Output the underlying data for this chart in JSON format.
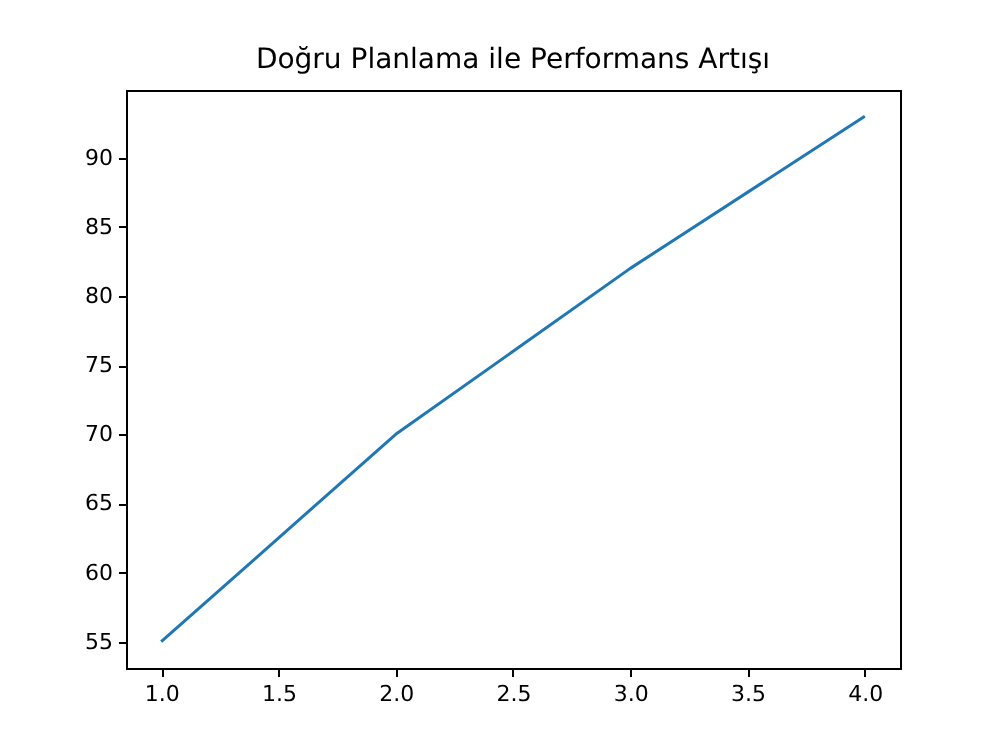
{
  "chart_data": {
    "type": "line",
    "title": "Doğru Planlama ile Performans Artışı",
    "x": [
      1,
      2,
      3,
      4
    ],
    "series": [
      {
        "color": "#1f77b4",
        "values": [
          55,
          70,
          82,
          93
        ]
      }
    ],
    "xlim": [
      0.85,
      4.15
    ],
    "xticks": [
      {
        "value": 1,
        "label": "1.0"
      },
      1.5,
      {
        "value": 2,
        "label": "2.0"
      },
      2.5,
      {
        "value": 3,
        "label": "3.0"
      },
      3.5,
      {
        "value": 4,
        "label": "4.0"
      }
    ],
    "ylim": [
      53.1,
      94.9
    ],
    "yticks": [
      55,
      60,
      65,
      70,
      75,
      80,
      85,
      90
    ],
    "grid": false
  }
}
